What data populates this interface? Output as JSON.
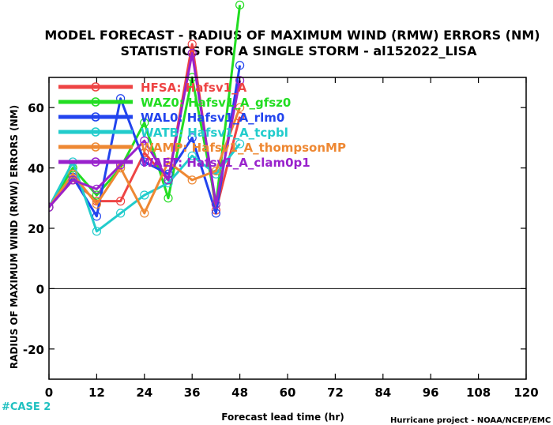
{
  "chart_data": {
    "type": "line",
    "title_line1": "MODEL FORECAST - RADIUS OF MAXIMUM WIND (RMW) ERRORS (NM)",
    "title_line2": "STATISTICS FOR A SINGLE STORM - al152022_LISA",
    "xlabel": "Forecast lead time (hr)",
    "ylabel": "RADIUS OF MAXIMUM WIND (RMW) ERRORS (NM)",
    "xlim": [
      0,
      120
    ],
    "ylim": [
      -30,
      70
    ],
    "xticks": [
      0,
      12,
      24,
      36,
      48,
      60,
      72,
      84,
      96,
      108,
      120
    ],
    "yticks": [
      -20,
      0,
      20,
      40,
      60
    ],
    "zero_line": true,
    "grid": false,
    "legend_position": "top-left",
    "case_label": "#CASE  2",
    "credit": "Hurricane project - NOAA/NCEP/EMC",
    "case_color": "#20c0c0",
    "series": [
      {
        "abbr": "HFSA",
        "name": "Hafsv1_A",
        "color": "#ee4444",
        "x": [
          0,
          6,
          12,
          18,
          24,
          30,
          36,
          42,
          48
        ],
        "y": [
          27,
          36,
          29,
          29,
          45,
          36,
          81,
          26,
          57
        ]
      },
      {
        "abbr": "WAZ0",
        "name": "Hafsv1_A_gfsz0",
        "color": "#22dd22",
        "x": [
          0,
          6,
          12,
          18,
          24,
          30,
          36,
          42,
          48
        ],
        "y": [
          27,
          40,
          31,
          40,
          55,
          30,
          70,
          28,
          94
        ]
      },
      {
        "abbr": "WAL0",
        "name": "Hafsv1_A_rlm0",
        "color": "#2244ee",
        "x": [
          0,
          6,
          12,
          18,
          24,
          30,
          36,
          42,
          48
        ],
        "y": [
          27,
          37,
          24,
          63,
          42,
          38,
          50,
          25,
          74
        ]
      },
      {
        "abbr": "WATB",
        "name": "Hafsv1_A_tcpbl",
        "color": "#22cccc",
        "x": [
          0,
          6,
          12,
          18,
          24,
          30,
          36,
          42,
          48
        ],
        "y": [
          27,
          42,
          19,
          25,
          31,
          35,
          44,
          38,
          48
        ]
      },
      {
        "abbr": "WAMP",
        "name": "Hafsv1_A_thompsonMP",
        "color": "#ee8833",
        "x": [
          0,
          6,
          12,
          18,
          24,
          30,
          36,
          42,
          48
        ],
        "y": [
          27,
          38,
          28,
          40,
          25,
          42,
          36,
          39,
          60
        ]
      },
      {
        "abbr": "WAET",
        "name": "Hafsv1_A_clam0p1",
        "color": "#9922cc",
        "x": [
          0,
          6,
          12,
          18,
          24,
          30,
          36,
          42,
          48
        ],
        "y": [
          27,
          36,
          33,
          41,
          49,
          36,
          78,
          28,
          69
        ]
      }
    ]
  }
}
